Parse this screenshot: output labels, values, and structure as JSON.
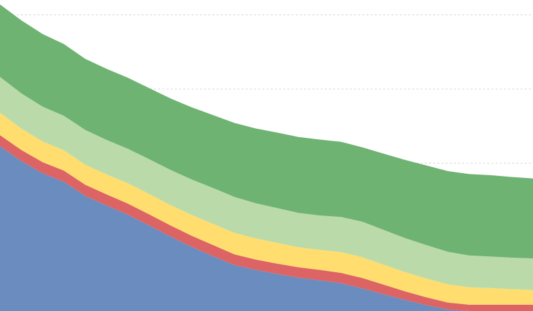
{
  "chart_data": {
    "type": "area",
    "stacked": true,
    "x": [
      0,
      1,
      2,
      3,
      4,
      5,
      6,
      7,
      8,
      9,
      10,
      11,
      12,
      13,
      14,
      15,
      16,
      17,
      18,
      19,
      20,
      21,
      22,
      23,
      24,
      25
    ],
    "series": [
      {
        "color": "#6b8cbf",
        "values": [
          44.5,
          40.5,
          37.2,
          34.9,
          31.1,
          28.5,
          26.0,
          23.1,
          20.1,
          17.3,
          14.8,
          12.4,
          11.1,
          10.0,
          9.0,
          8.3,
          7.5,
          6.1,
          4.5,
          3.0,
          1.6,
          0.4,
          0.0,
          0.0,
          0.0,
          0.0
        ]
      },
      {
        "color": "#dc6464",
        "values": [
          3.0,
          3.0,
          3.0,
          3.0,
          3.0,
          3.0,
          3.0,
          3.0,
          3.0,
          3.0,
          3.0,
          2.9,
          2.8,
          2.8,
          2.8,
          2.8,
          2.8,
          2.8,
          2.6,
          2.3,
          2.1,
          1.9,
          1.7,
          1.7,
          1.7,
          1.7
        ]
      },
      {
        "color": "#ffdd6e",
        "values": [
          6.0,
          5.8,
          5.6,
          5.5,
          5.4,
          5.4,
          5.5,
          5.5,
          5.5,
          5.6,
          5.7,
          5.8,
          5.7,
          5.6,
          5.4,
          5.4,
          5.6,
          5.6,
          5.4,
          5.2,
          5.1,
          4.9,
          4.7,
          4.5,
          4.2,
          4.0
        ]
      },
      {
        "color": "#badba9",
        "values": [
          9.7,
          9.5,
          9.4,
          9.3,
          9.4,
          9.3,
          9.3,
          9.4,
          9.5,
          9.6,
          9.7,
          9.7,
          9.5,
          9.4,
          9.3,
          9.3,
          9.5,
          9.6,
          9.4,
          9.2,
          9.0,
          8.8,
          8.6,
          8.5,
          8.5,
          8.5
        ]
      },
      {
        "color": "#6fb373",
        "values": [
          19.6,
          19.7,
          19.6,
          19.4,
          19.2,
          19.2,
          19.2,
          19.2,
          19.3,
          19.5,
          19.7,
          20.0,
          20.2,
          20.4,
          20.5,
          20.5,
          20.3,
          20.1,
          20.6,
          21.1,
          21.5,
          21.8,
          22.0,
          22.0,
          21.8,
          21.6
        ]
      }
    ],
    "xlim": [
      0,
      25
    ],
    "ylim": [
      0,
      84
    ],
    "yticks": [
      20,
      40,
      60,
      80
    ],
    "grid": true,
    "legend": "none"
  }
}
